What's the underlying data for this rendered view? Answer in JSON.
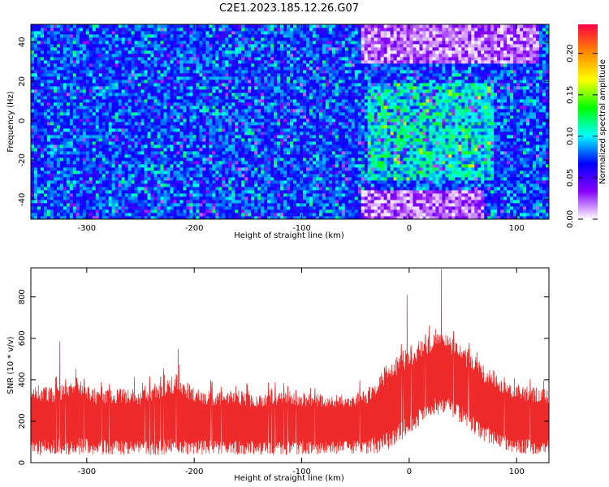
{
  "title": "C2E1.2023.185.12.26.G07",
  "colors": {
    "snr_line": "#ee2a2a",
    "background": "#ffffff",
    "axis": "#000000",
    "colormap": [
      "#ffffff",
      "#8800ff",
      "#0000ff",
      "#00ffff",
      "#00ff00",
      "#ffff00",
      "#ff8800",
      "#ff0044"
    ]
  },
  "chart_data": [
    {
      "type": "heatmap",
      "title": "C2E1.2023.185.12.26.G07",
      "xlabel": "Height of straight line (km)",
      "ylabel": "Frequency (Hz)",
      "xlim": [
        -352,
        130
      ],
      "ylim": [
        -50,
        49
      ],
      "xticks": [
        -300,
        -200,
        -100,
        0,
        100
      ],
      "yticks": [
        -40,
        -20,
        0,
        20,
        40
      ],
      "grid": false,
      "colorbar": {
        "label": "Normalized spectral amplitude",
        "range": [
          0,
          0.235
        ],
        "ticks": [
          "0.00",
          "0.05",
          "0.10",
          "0.15",
          "0.20"
        ]
      },
      "features": [
        {
          "description_region": "high amplitude cluster",
          "x_range": [
            -40,
            80
          ],
          "y_range": [
            -30,
            20
          ]
        },
        {
          "description_region": "low amplitude (white/violet)",
          "x_range": [
            -45,
            120
          ],
          "y_range": [
            30,
            49
          ]
        },
        {
          "description_region": "low amplitude (white/violet)",
          "x_range": [
            -45,
            70
          ],
          "y_range": [
            -50,
            -35
          ]
        }
      ]
    },
    {
      "type": "line",
      "xlabel": "Height of straight line (km)",
      "ylabel": "SNR (10 * v/v)",
      "xlim": [
        -352,
        130
      ],
      "ylim": [
        0,
        940
      ],
      "xticks": [
        -300,
        -200,
        -100,
        0,
        100
      ],
      "yticks": [
        0,
        200,
        400,
        600,
        800
      ],
      "grid": false,
      "envelope": {
        "x": [
          -352,
          -330,
          -310,
          -290,
          -270,
          -250,
          -230,
          -215,
          -200,
          -180,
          -160,
          -140,
          -120,
          -100,
          -80,
          -60,
          -40,
          -30,
          -20,
          -10,
          0,
          10,
          20,
          30,
          40,
          50,
          60,
          70,
          80,
          90,
          100,
          110,
          120,
          130
        ],
        "upper": [
          380,
          360,
          420,
          350,
          360,
          350,
          390,
          430,
          360,
          340,
          350,
          330,
          350,
          340,
          330,
          330,
          350,
          420,
          480,
          520,
          560,
          590,
          620,
          680,
          600,
          560,
          520,
          470,
          440,
          400,
          380,
          370,
          360,
          350
        ],
        "lower": [
          30,
          40,
          35,
          40,
          35,
          40,
          35,
          40,
          35,
          40,
          35,
          40,
          35,
          40,
          35,
          40,
          40,
          45,
          60,
          90,
          130,
          180,
          220,
          240,
          220,
          180,
          140,
          100,
          70,
          55,
          45,
          40,
          40,
          35
        ]
      },
      "peaks": [
        {
          "x": 30,
          "y": 935
        },
        {
          "x": -2,
          "y": 810
        },
        {
          "x": -325,
          "y": 585
        },
        {
          "x": -215,
          "y": 550
        }
      ]
    }
  ]
}
